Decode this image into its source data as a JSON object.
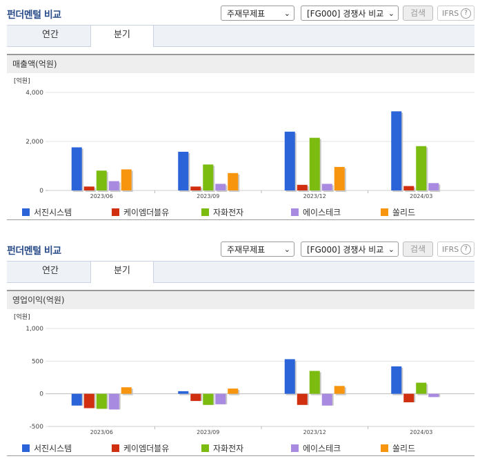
{
  "sections": [
    {
      "title": "펀더멘털 비교",
      "select1": "주재무제표",
      "select2": "[FG000] 경쟁사 비교",
      "search_label": "검색",
      "ifrs_label": "IFRS",
      "help_label": "?",
      "tabs": [
        "연간",
        "분기"
      ],
      "active_tab": 1,
      "subtitle": "매출액(억원)"
    },
    {
      "title": "펀더멘털 비교",
      "select1": "주재무제표",
      "select2": "[FG000] 경쟁사 비교",
      "search_label": "검색",
      "ifrs_label": "IFRS",
      "help_label": "?",
      "tabs": [
        "연간",
        "분기"
      ],
      "active_tab": 1,
      "subtitle": "영업이익(억원)"
    }
  ],
  "chart_data": [
    {
      "type": "bar",
      "title": "매출액(억원)",
      "unit_label": "[억원]",
      "categories": [
        "2023/06",
        "2023/09",
        "2023/12",
        "2024/03"
      ],
      "ylim": [
        0,
        4000
      ],
      "yticks": [
        0,
        2000,
        4000
      ],
      "ytick_labels": [
        "0",
        "2,000",
        "4,000"
      ],
      "series": [
        {
          "name": "서진시스템",
          "color": "#2b63d9",
          "values": [
            1760,
            1580,
            2400,
            3230
          ]
        },
        {
          "name": "케이엠더블유",
          "color": "#d03010",
          "values": [
            160,
            160,
            230,
            180
          ]
        },
        {
          "name": "자화전자",
          "color": "#7cbb10",
          "values": [
            810,
            1060,
            2150,
            1810
          ]
        },
        {
          "name": "에이스테크",
          "color": "#a88ae0",
          "values": [
            380,
            270,
            270,
            300
          ]
        },
        {
          "name": "쏠리드",
          "color": "#f7950f",
          "values": [
            860,
            710,
            960,
            0
          ]
        }
      ],
      "legend": "bottom"
    },
    {
      "type": "bar",
      "title": "영업이익(억원)",
      "unit_label": "[억원]",
      "categories": [
        "2023/06",
        "2023/09",
        "2023/12",
        "2024/03"
      ],
      "ylim": [
        -500,
        1000
      ],
      "yticks": [
        -500,
        0,
        500,
        1000
      ],
      "ytick_labels": [
        "-500",
        "0",
        "500",
        "1,000"
      ],
      "series": [
        {
          "name": "서진시스템",
          "color": "#2b63d9",
          "values": [
            -180,
            40,
            530,
            420
          ]
        },
        {
          "name": "케이엠더블유",
          "color": "#d03010",
          "values": [
            -220,
            -110,
            -170,
            -130
          ]
        },
        {
          "name": "자화전자",
          "color": "#7cbb10",
          "values": [
            -230,
            -170,
            350,
            170
          ]
        },
        {
          "name": "에이스테크",
          "color": "#a88ae0",
          "values": [
            -240,
            -160,
            -180,
            -50
          ]
        },
        {
          "name": "쏠리드",
          "color": "#f7950f",
          "values": [
            100,
            80,
            120,
            0
          ]
        }
      ],
      "legend": "bottom"
    }
  ]
}
